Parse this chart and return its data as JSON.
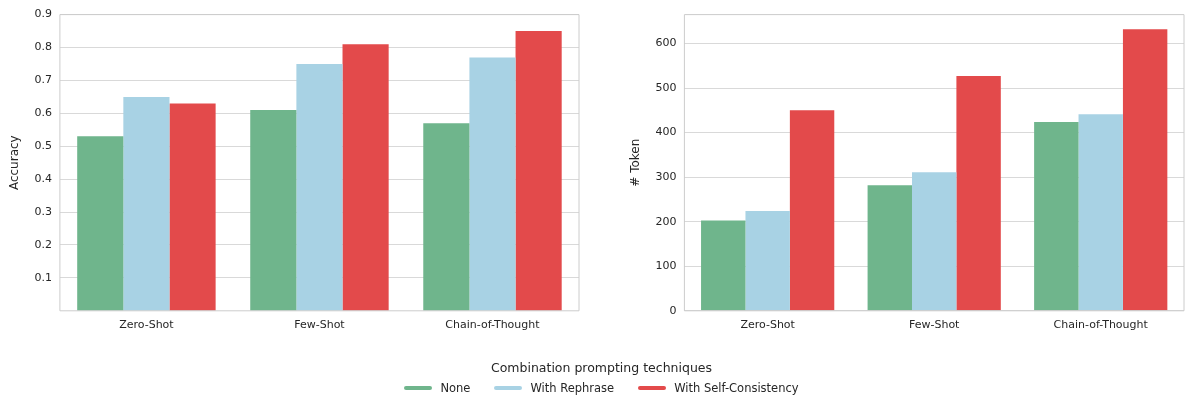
{
  "chart_data": [
    {
      "type": "bar",
      "ylabel": "Accuracy",
      "categories": [
        "Zero-Shot",
        "Few-Shot",
        "Chain-of-Thought"
      ],
      "legend": "bottom",
      "legend_title": "Combination prompting techniques",
      "grid": "y",
      "ylim": [
        0,
        0.9
      ],
      "yticks": [
        0.1,
        0.2,
        0.3,
        0.4,
        0.5,
        0.6,
        0.7,
        0.8,
        0.9
      ],
      "series": [
        {
          "name": "None",
          "color": "#6fb58c",
          "values": [
            0.53,
            0.61,
            0.57
          ]
        },
        {
          "name": "With Rephrase",
          "color": "#a8d2e4",
          "values": [
            0.65,
            0.75,
            0.77
          ]
        },
        {
          "name": "With Self-Consistency",
          "color": "#e34a4b",
          "values": [
            0.63,
            0.81,
            0.85
          ]
        }
      ]
    },
    {
      "type": "bar",
      "ylabel": "# Token",
      "categories": [
        "Zero-Shot",
        "Few-Shot",
        "Chain-of-Thought"
      ],
      "grid": "y",
      "ylim": [
        0,
        665
      ],
      "yticks": [
        0,
        100,
        200,
        300,
        400,
        500,
        600
      ],
      "series": [
        {
          "color": "#6fb58c",
          "values": [
            203,
            282,
            424
          ]
        },
        {
          "color": "#a8d2e4",
          "values": [
            224,
            311,
            441
          ]
        },
        {
          "color": "#e34a4b",
          "values": [
            450,
            527,
            632
          ]
        }
      ]
    }
  ]
}
